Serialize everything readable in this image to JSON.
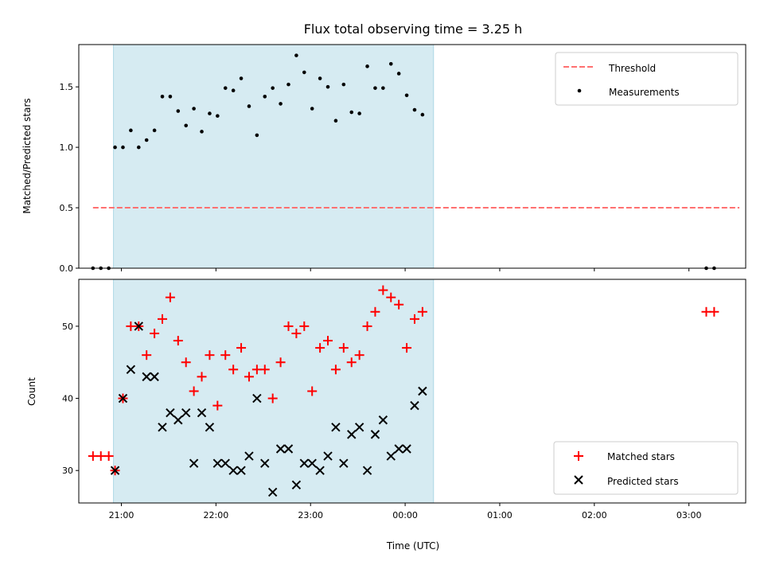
{
  "chart_data": [
    {
      "type": "scatter",
      "title": "Flux total observing time = 3.25 h",
      "xlabel": "",
      "ylabel": "Matched/Predicted stars",
      "ylim": [
        0.0,
        1.85
      ],
      "yticks": [
        "0.0",
        "0.5",
        "1.0",
        "1.5"
      ],
      "xlim": [
        "20:33",
        "03:36"
      ],
      "x_tick_labels_visible": false,
      "shaded_interval": {
        "start": "20:55",
        "end": "00:18",
        "color": "#add8e6"
      },
      "threshold": {
        "name": "Threshold",
        "value": 0.5,
        "x_range": [
          "20:42",
          "03:32"
        ],
        "color": "#ff7070",
        "style": "dashed"
      },
      "legend": {
        "placement": "top-right",
        "entries": [
          "Threshold",
          "Measurements"
        ]
      },
      "series": [
        {
          "name": "Measurements",
          "marker": "dot",
          "color": "#000000",
          "points": [
            [
              "20:42",
              0.0
            ],
            [
              "20:47",
              0.0
            ],
            [
              "20:52",
              0.0
            ],
            [
              "20:56",
              1.0
            ],
            [
              "21:01",
              1.0
            ],
            [
              "21:06",
              1.14
            ],
            [
              "21:11",
              1.0
            ],
            [
              "21:16",
              1.06
            ],
            [
              "21:21",
              1.14
            ],
            [
              "21:26",
              1.42
            ],
            [
              "21:31",
              1.42
            ],
            [
              "21:36",
              1.3
            ],
            [
              "21:41",
              1.18
            ],
            [
              "21:46",
              1.32
            ],
            [
              "21:51",
              1.13
            ],
            [
              "21:56",
              1.28
            ],
            [
              "22:01",
              1.26
            ],
            [
              "22:06",
              1.49
            ],
            [
              "22:11",
              1.47
            ],
            [
              "22:16",
              1.57
            ],
            [
              "22:21",
              1.34
            ],
            [
              "22:26",
              1.1
            ],
            [
              "22:31",
              1.42
            ],
            [
              "22:36",
              1.49
            ],
            [
              "22:41",
              1.36
            ],
            [
              "22:46",
              1.52
            ],
            [
              "22:51",
              1.76
            ],
            [
              "22:56",
              1.62
            ],
            [
              "23:01",
              1.32
            ],
            [
              "23:06",
              1.57
            ],
            [
              "23:11",
              1.5
            ],
            [
              "23:16",
              1.22
            ],
            [
              "23:21",
              1.52
            ],
            [
              "23:26",
              1.29
            ],
            [
              "23:31",
              1.28
            ],
            [
              "23:36",
              1.67
            ],
            [
              "23:41",
              1.49
            ],
            [
              "23:46",
              1.49
            ],
            [
              "23:51",
              1.69
            ],
            [
              "23:56",
              1.61
            ],
            [
              "00:01",
              1.43
            ],
            [
              "00:06",
              1.31
            ],
            [
              "00:11",
              1.27
            ],
            [
              "03:11",
              0.0
            ],
            [
              "03:16",
              0.0
            ]
          ]
        }
      ]
    },
    {
      "type": "scatter",
      "title": "",
      "xlabel": "Time (UTC)",
      "ylabel": "Count",
      "ylim": [
        25.5,
        56.5
      ],
      "yticks": [
        "30",
        "40",
        "50"
      ],
      "xlim": [
        "20:33",
        "03:36"
      ],
      "xticks": [
        "21:00",
        "22:00",
        "23:00",
        "00:00",
        "01:00",
        "02:00",
        "03:00"
      ],
      "shaded_interval": {
        "start": "20:55",
        "end": "00:18",
        "color": "#add8e6"
      },
      "legend": {
        "placement": "bottom-right",
        "entries": [
          "Matched stars",
          "Predicted stars"
        ]
      },
      "series": [
        {
          "name": "Matched stars",
          "marker": "plus",
          "color": "#ff0000",
          "points": [
            [
              "20:42",
              32
            ],
            [
              "20:47",
              32
            ],
            [
              "20:52",
              32
            ],
            [
              "20:56",
              30
            ],
            [
              "21:01",
              40
            ],
            [
              "21:06",
              50
            ],
            [
              "21:11",
              50
            ],
            [
              "21:16",
              46
            ],
            [
              "21:21",
              49
            ],
            [
              "21:26",
              51
            ],
            [
              "21:31",
              54
            ],
            [
              "21:36",
              48
            ],
            [
              "21:41",
              45
            ],
            [
              "21:46",
              41
            ],
            [
              "21:51",
              43
            ],
            [
              "21:56",
              46
            ],
            [
              "22:01",
              39
            ],
            [
              "22:06",
              46
            ],
            [
              "22:11",
              44
            ],
            [
              "22:16",
              47
            ],
            [
              "22:21",
              43
            ],
            [
              "22:26",
              44
            ],
            [
              "22:31",
              44
            ],
            [
              "22:36",
              40
            ],
            [
              "22:41",
              45
            ],
            [
              "22:46",
              50
            ],
            [
              "22:51",
              49
            ],
            [
              "22:56",
              50
            ],
            [
              "23:01",
              41
            ],
            [
              "23:06",
              47
            ],
            [
              "23:11",
              48
            ],
            [
              "23:16",
              44
            ],
            [
              "23:21",
              47
            ],
            [
              "23:26",
              45
            ],
            [
              "23:31",
              46
            ],
            [
              "23:36",
              50
            ],
            [
              "23:41",
              52
            ],
            [
              "23:46",
              55
            ],
            [
              "23:51",
              54
            ],
            [
              "23:56",
              53
            ],
            [
              "00:01",
              47
            ],
            [
              "00:06",
              51
            ],
            [
              "00:11",
              52
            ],
            [
              "03:11",
              52
            ],
            [
              "03:16",
              52
            ]
          ]
        },
        {
          "name": "Predicted stars",
          "marker": "x",
          "color": "#000000",
          "points": [
            [
              "20:56",
              30
            ],
            [
              "21:01",
              40
            ],
            [
              "21:06",
              44
            ],
            [
              "21:11",
              50
            ],
            [
              "21:16",
              43
            ],
            [
              "21:21",
              43
            ],
            [
              "21:26",
              36
            ],
            [
              "21:31",
              38
            ],
            [
              "21:36",
              37
            ],
            [
              "21:41",
              38
            ],
            [
              "21:46",
              31
            ],
            [
              "21:51",
              38
            ],
            [
              "21:56",
              36
            ],
            [
              "22:01",
              31
            ],
            [
              "22:06",
              31
            ],
            [
              "22:11",
              30
            ],
            [
              "22:16",
              30
            ],
            [
              "22:21",
              32
            ],
            [
              "22:26",
              40
            ],
            [
              "22:31",
              31
            ],
            [
              "22:36",
              27
            ],
            [
              "22:41",
              33
            ],
            [
              "22:46",
              33
            ],
            [
              "22:51",
              28
            ],
            [
              "22:56",
              31
            ],
            [
              "23:01",
              31
            ],
            [
              "23:06",
              30
            ],
            [
              "23:11",
              32
            ],
            [
              "23:16",
              36
            ],
            [
              "23:21",
              31
            ],
            [
              "23:26",
              35
            ],
            [
              "23:31",
              36
            ],
            [
              "23:36",
              30
            ],
            [
              "23:41",
              35
            ],
            [
              "23:46",
              37
            ],
            [
              "23:51",
              32
            ],
            [
              "23:56",
              33
            ],
            [
              "00:01",
              33
            ],
            [
              "00:06",
              39
            ],
            [
              "00:11",
              41
            ]
          ]
        }
      ]
    }
  ]
}
